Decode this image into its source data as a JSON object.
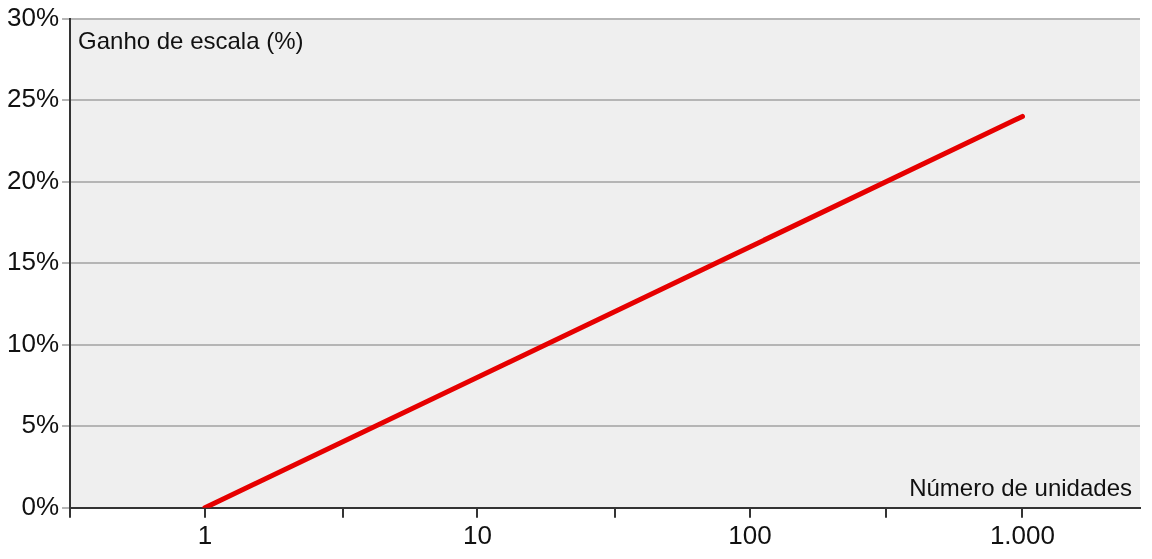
{
  "chart_data": {
    "type": "line",
    "xlabel": "Número de unidades",
    "ylabel": "Ganho de escala (%)",
    "log": "x",
    "x": [
      1,
      1000
    ],
    "series": [
      {
        "color": "#e60000",
        "values": [
          0,
          24
        ]
      }
    ],
    "xlim": [
      0.32,
      2700
    ],
    "xticks": [
      {
        "value": 0.32,
        "label": null
      },
      {
        "value": 1,
        "label": "1"
      },
      {
        "value": 3.2,
        "label": null
      },
      {
        "value": 10,
        "label": "10"
      },
      {
        "value": 32,
        "label": null
      },
      {
        "value": 100,
        "label": "100"
      },
      {
        "value": 316,
        "label": null
      },
      {
        "value": 1000,
        "label": "1.000"
      }
    ],
    "ylim": [
      0,
      30
    ],
    "yticks": [
      {
        "value": 0,
        "label": "0%"
      },
      {
        "value": 5,
        "label": "5%"
      },
      {
        "value": 10,
        "label": "10%"
      },
      {
        "value": 15,
        "label": "15%"
      },
      {
        "value": 20,
        "label": "20%"
      },
      {
        "value": 25,
        "label": "25%"
      },
      {
        "value": 30,
        "label": "30%"
      }
    ],
    "grid": "y",
    "legend": false,
    "marker": "none",
    "line_style": "solid"
  }
}
